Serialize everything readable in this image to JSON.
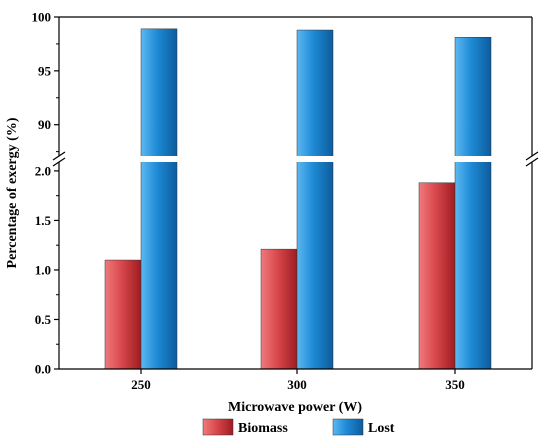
{
  "chart_data": {
    "type": "bar",
    "xlabel": "Microwave power (W)",
    "ylabel": "Percentage of exergy (%)",
    "categories": [
      "250",
      "300",
      "350"
    ],
    "series": [
      {
        "name": "Biomass",
        "values": [
          1.1,
          1.21,
          1.88
        ],
        "color": "#d9484c"
      },
      {
        "name": "Lost",
        "values": [
          98.9,
          98.79,
          98.12
        ],
        "color": "#1e8ad6"
      }
    ],
    "y_axis_break": {
      "lower_range": [
        0,
        2.1
      ],
      "upper_range": [
        87,
        100
      ]
    },
    "lower_ticks": [
      "0.0",
      "0.5",
      "1.0",
      "1.5",
      "2.0"
    ],
    "upper_ticks": [
      "90",
      "95",
      "100"
    ],
    "legend_position": "bottom",
    "grid": false
  }
}
